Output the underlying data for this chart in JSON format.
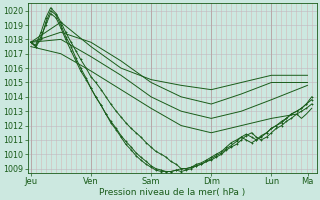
{
  "bg_color": "#cce8e0",
  "plot_bg_color": "#cce8e0",
  "grid_color_v": "#d4b8b8",
  "grid_color_h": "#b8c8c0",
  "line_color": "#1a5c1a",
  "ylabel_ticks": [
    1009,
    1010,
    1011,
    1012,
    1013,
    1014,
    1015,
    1016,
    1017,
    1018,
    1019,
    1020
  ],
  "x_tick_labels": [
    "Jeu",
    "Ven",
    "Sam",
    "Dim",
    "Lun",
    "Ma"
  ],
  "x_tick_positions": [
    0,
    1,
    2,
    3,
    4,
    4.6
  ],
  "xlabel": "Pression niveau de la mer( hPa )",
  "ymin": 1008.7,
  "ymax": 1020.5,
  "xmin": -0.05,
  "xmax": 4.75,
  "line1_x": [
    0,
    0.08,
    0.17,
    0.25,
    0.33,
    0.42,
    0.5,
    0.58,
    0.67,
    0.75,
    0.83,
    0.92,
    1.0,
    1.08,
    1.17,
    1.25,
    1.33,
    1.42,
    1.5,
    1.58,
    1.67,
    1.75,
    1.83,
    1.92,
    2.0,
    2.08,
    2.17,
    2.25,
    2.33,
    2.42,
    2.5,
    2.58,
    2.67,
    2.75,
    2.83,
    2.92,
    3.0,
    3.08,
    3.17,
    3.25,
    3.33,
    3.42,
    3.5,
    3.58,
    3.67,
    3.75,
    3.83,
    3.92,
    4.0,
    4.08,
    4.17,
    4.25,
    4.33,
    4.42,
    4.5,
    4.58,
    4.67
  ],
  "line1_y": [
    1017.8,
    1017.6,
    1018.5,
    1019.5,
    1020.2,
    1019.8,
    1019.2,
    1018.5,
    1017.8,
    1017.2,
    1016.6,
    1016.0,
    1015.4,
    1015.0,
    1014.5,
    1014.0,
    1013.5,
    1013.0,
    1012.6,
    1012.2,
    1011.8,
    1011.5,
    1011.2,
    1010.8,
    1010.5,
    1010.2,
    1010.0,
    1009.8,
    1009.5,
    1009.3,
    1009.0,
    1009.0,
    1009.1,
    1009.2,
    1009.3,
    1009.5,
    1009.6,
    1009.8,
    1010.0,
    1010.3,
    1010.5,
    1010.7,
    1011.0,
    1011.3,
    1011.5,
    1011.2,
    1011.0,
    1011.2,
    1011.5,
    1011.8,
    1012.0,
    1012.3,
    1012.5,
    1012.8,
    1013.0,
    1013.2,
    1013.5
  ],
  "line2_x": [
    0,
    0.5,
    1.0,
    1.5,
    2.0,
    2.5,
    3.0,
    3.5,
    4.0,
    4.6
  ],
  "line2_y": [
    1017.8,
    1018.5,
    1017.8,
    1016.5,
    1015.0,
    1014.0,
    1013.5,
    1014.2,
    1015.0,
    1015.0
  ],
  "line3_x": [
    0,
    0.5,
    1.0,
    1.5,
    2.0,
    2.5,
    3.0,
    3.5,
    4.0,
    4.6
  ],
  "line3_y": [
    1017.8,
    1018.0,
    1016.8,
    1015.5,
    1014.0,
    1013.0,
    1012.5,
    1013.0,
    1013.8,
    1014.8
  ],
  "line4_x": [
    0,
    0.5,
    1.0,
    1.5,
    2.0,
    2.5,
    3.0,
    3.5,
    4.0,
    4.6
  ],
  "line4_y": [
    1017.8,
    1019.2,
    1017.5,
    1016.0,
    1015.2,
    1014.8,
    1014.5,
    1015.0,
    1015.5,
    1015.5
  ],
  "line5_x": [
    0,
    0.08,
    0.17,
    0.25,
    0.33,
    0.42,
    0.5,
    0.58,
    0.67,
    0.75,
    0.83,
    0.92,
    1.0,
    1.08,
    1.17,
    1.25,
    1.33,
    1.42,
    1.5,
    1.58,
    1.67,
    1.75,
    1.83,
    1.92,
    2.0,
    2.08,
    2.17,
    2.25,
    2.33,
    2.42,
    2.5,
    2.58,
    2.67,
    2.75,
    2.83,
    2.92,
    3.0,
    3.08,
    3.17,
    3.25,
    3.33,
    3.42,
    3.5,
    3.58,
    3.67,
    3.75,
    3.83,
    3.92,
    4.0,
    4.08,
    4.17,
    4.25,
    4.33,
    4.42,
    4.5,
    4.58,
    4.67
  ],
  "line5_y": [
    1017.8,
    1017.5,
    1018.2,
    1019.0,
    1019.8,
    1019.5,
    1018.8,
    1018.0,
    1017.2,
    1016.5,
    1015.8,
    1015.2,
    1014.6,
    1014.0,
    1013.4,
    1012.8,
    1012.3,
    1011.8,
    1011.3,
    1010.9,
    1010.5,
    1010.1,
    1009.8,
    1009.5,
    1009.2,
    1009.0,
    1008.9,
    1008.8,
    1008.8,
    1008.9,
    1008.8,
    1008.9,
    1009.0,
    1009.2,
    1009.3,
    1009.5,
    1009.7,
    1009.9,
    1010.1,
    1010.4,
    1010.6,
    1010.9,
    1011.2,
    1011.4,
    1011.2,
    1011.0,
    1011.2,
    1011.5,
    1011.8,
    1012.0,
    1012.2,
    1012.5,
    1012.8,
    1013.0,
    1013.2,
    1013.5,
    1013.8
  ],
  "line6_x": [
    0,
    0.08,
    0.17,
    0.25,
    0.33,
    0.42,
    0.5,
    0.58,
    0.67,
    0.75,
    0.83,
    0.92,
    1.0,
    1.08,
    1.17,
    1.25,
    1.33,
    1.42,
    1.5,
    1.58,
    1.67,
    1.75,
    1.83,
    1.92,
    2.0,
    2.08,
    2.17,
    2.25,
    2.33,
    2.42,
    2.5,
    2.58,
    2.67,
    2.75,
    2.83,
    2.92,
    3.0,
    3.08,
    3.17,
    3.25,
    3.33,
    3.42,
    3.5,
    3.58,
    3.67,
    3.75,
    3.83,
    3.92,
    4.0,
    4.08,
    4.17,
    4.25,
    4.33,
    4.42,
    4.5,
    4.58,
    4.67
  ],
  "line6_y": [
    1017.8,
    1017.5,
    1018.0,
    1019.2,
    1020.0,
    1019.7,
    1019.0,
    1018.2,
    1017.5,
    1016.7,
    1016.0,
    1015.3,
    1014.6,
    1014.0,
    1013.4,
    1012.8,
    1012.2,
    1011.7,
    1011.2,
    1010.7,
    1010.3,
    1009.9,
    1009.6,
    1009.3,
    1009.1,
    1008.9,
    1008.8,
    1008.8,
    1008.8,
    1008.9,
    1009.0,
    1009.0,
    1009.1,
    1009.3,
    1009.4,
    1009.6,
    1009.8,
    1010.0,
    1010.2,
    1010.5,
    1010.8,
    1011.0,
    1011.2,
    1011.0,
    1010.8,
    1011.0,
    1011.3,
    1011.5,
    1011.8,
    1012.0,
    1012.3,
    1012.5,
    1012.8,
    1013.0,
    1013.2,
    1013.5,
    1014.0
  ],
  "line7_x": [
    0,
    0.5,
    1.0,
    1.5,
    2.0,
    2.5,
    3.0,
    3.5,
    4.0,
    4.42,
    4.5,
    4.58,
    4.67
  ],
  "line7_y": [
    1017.5,
    1017.0,
    1015.8,
    1014.5,
    1013.2,
    1012.0,
    1011.5,
    1012.0,
    1012.5,
    1012.8,
    1012.5,
    1012.8,
    1013.2
  ]
}
